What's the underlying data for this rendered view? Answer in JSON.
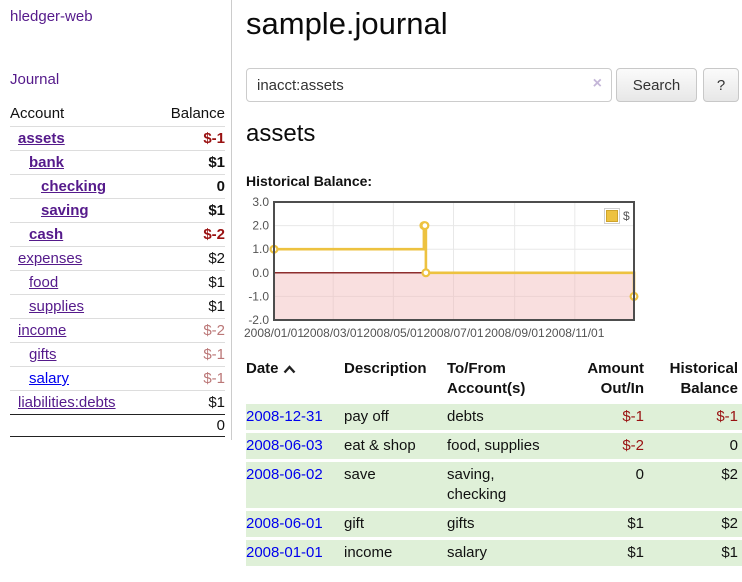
{
  "app": {
    "brand": "hledger-web"
  },
  "sidebar": {
    "nav": [
      {
        "label": "Journal"
      }
    ],
    "table": {
      "headers": {
        "account": "Account",
        "balance": "Balance"
      },
      "rows": [
        {
          "label": "assets",
          "balance": "$-1",
          "indent": 1,
          "bold": true,
          "balance_class": "neg",
          "link_class": "link-purple"
        },
        {
          "label": "bank",
          "balance": "$1",
          "indent": 2,
          "bold": true,
          "balance_class": "",
          "link_class": "link-purple"
        },
        {
          "label": "checking",
          "balance": "0",
          "indent": 3,
          "bold": true,
          "balance_class": "",
          "link_class": "link-purple"
        },
        {
          "label": "saving",
          "balance": "$1",
          "indent": 3,
          "bold": true,
          "balance_class": "",
          "link_class": "link-purple"
        },
        {
          "label": "cash",
          "balance": "$-2",
          "indent": 2,
          "bold": true,
          "balance_class": "neg",
          "link_class": "link-purple"
        },
        {
          "label": "expenses",
          "balance": "$2",
          "indent": 1,
          "bold": false,
          "balance_class": "",
          "link_class": "link-purple"
        },
        {
          "label": "food",
          "balance": "$1",
          "indent": 2,
          "bold": false,
          "balance_class": "",
          "link_class": "link-purple"
        },
        {
          "label": "supplies",
          "balance": "$1",
          "indent": 2,
          "bold": false,
          "balance_class": "",
          "link_class": "link-purple"
        },
        {
          "label": "income",
          "balance": "$-2",
          "indent": 1,
          "bold": false,
          "balance_class": "neg-muted",
          "link_class": "link-purple"
        },
        {
          "label": "gifts",
          "balance": "$-1",
          "indent": 2,
          "bold": false,
          "balance_class": "neg-muted",
          "link_class": "link-purple"
        },
        {
          "label": "salary",
          "balance": "$-1",
          "indent": 2,
          "bold": false,
          "balance_class": "neg-muted",
          "link_class": "link-blue"
        },
        {
          "label": "liabilities:debts",
          "balance": "$1",
          "indent": 1,
          "bold": false,
          "balance_class": "",
          "link_class": "link-purple"
        }
      ],
      "total": "0"
    }
  },
  "header": {
    "title": "sample.journal"
  },
  "search": {
    "value": "inacct:assets",
    "clear_icon": "×",
    "search_button": "Search",
    "help_button": "?"
  },
  "main": {
    "account_title": "assets",
    "chart_label": "Historical Balance:"
  },
  "chart_data": {
    "type": "line",
    "title": "Historical Balance:",
    "series": [
      {
        "name": "$",
        "color": "#edc240",
        "marker_border": "#cfa42b",
        "step": true,
        "points": [
          {
            "x": "2008-01-01",
            "y": 1
          },
          {
            "x": "2008-06-01",
            "y": 2
          },
          {
            "x": "2008-06-02",
            "y": 2
          },
          {
            "x": "2008-06-03",
            "y": 0
          },
          {
            "x": "2008-12-31",
            "y": -1
          }
        ]
      }
    ],
    "xlim": [
      "2008-01-01",
      "2008-12-31"
    ],
    "ylim": [
      -2,
      3
    ],
    "yticks": [
      3.0,
      2.0,
      1.0,
      0.0,
      -1.0,
      -2.0
    ],
    "ytick_labels": [
      "3.0",
      "2.0",
      "1.0",
      "0.0",
      "-1.0",
      "-2.0"
    ],
    "xticks": [
      {
        "x": "2008-01-01",
        "label": "2008/01/01"
      },
      {
        "x": "2008-03-01",
        "label": "2008/03/01"
      },
      {
        "x": "2008-05-01",
        "label": "2008/05/01"
      },
      {
        "x": "2008-07-01",
        "label": "2008/07/01"
      },
      {
        "x": "2008-09-01",
        "label": "2008/09/01"
      },
      {
        "x": "2008-11-01",
        "label": "2008/11/01"
      }
    ],
    "grid": true,
    "legend_position": "top-right",
    "colors": {
      "plot_border": "#4d4d4d",
      "gridline": "#e8e8e8",
      "axis_text": "#545454",
      "negative_region": "#f2b8b8",
      "zero_line": "#8d2e2e"
    }
  },
  "register": {
    "headers": [
      {
        "line1": "Date",
        "line2": ""
      },
      {
        "line1": "Description",
        "line2": ""
      },
      {
        "line1": "To/From",
        "line2": "Account(s)"
      },
      {
        "line1": "Amount",
        "line2": "Out/In"
      },
      {
        "line1": "Historical",
        "line2": "Balance"
      }
    ],
    "rows": [
      {
        "date": "2008-12-31",
        "description": "pay off",
        "accounts": "debts",
        "amount": "$-1",
        "amount_class": "neg",
        "balance": "$-1",
        "balance_class": "neg"
      },
      {
        "date": "2008-06-03",
        "description": "eat & shop",
        "accounts": "food, supplies",
        "amount": "$-2",
        "amount_class": "neg",
        "balance": "0",
        "balance_class": ""
      },
      {
        "date": "2008-06-02",
        "description": "save",
        "accounts": "saving, checking",
        "amount": "0",
        "amount_class": "",
        "balance": "$2",
        "balance_class": ""
      },
      {
        "date": "2008-06-01",
        "description": "gift",
        "accounts": "gifts",
        "amount": "$1",
        "amount_class": "",
        "balance": "$2",
        "balance_class": ""
      },
      {
        "date": "2008-01-01",
        "description": "income",
        "accounts": "salary",
        "amount": "$1",
        "amount_class": "",
        "balance": "$1",
        "balance_class": ""
      }
    ]
  },
  "colors": {
    "link_purple": "#551a8b",
    "link_blue": "#0000ee",
    "negative_strong": "#991111",
    "negative_muted": "#bb7777",
    "register_row_green": "#dff0d8",
    "series_yellow": "#edc240"
  }
}
